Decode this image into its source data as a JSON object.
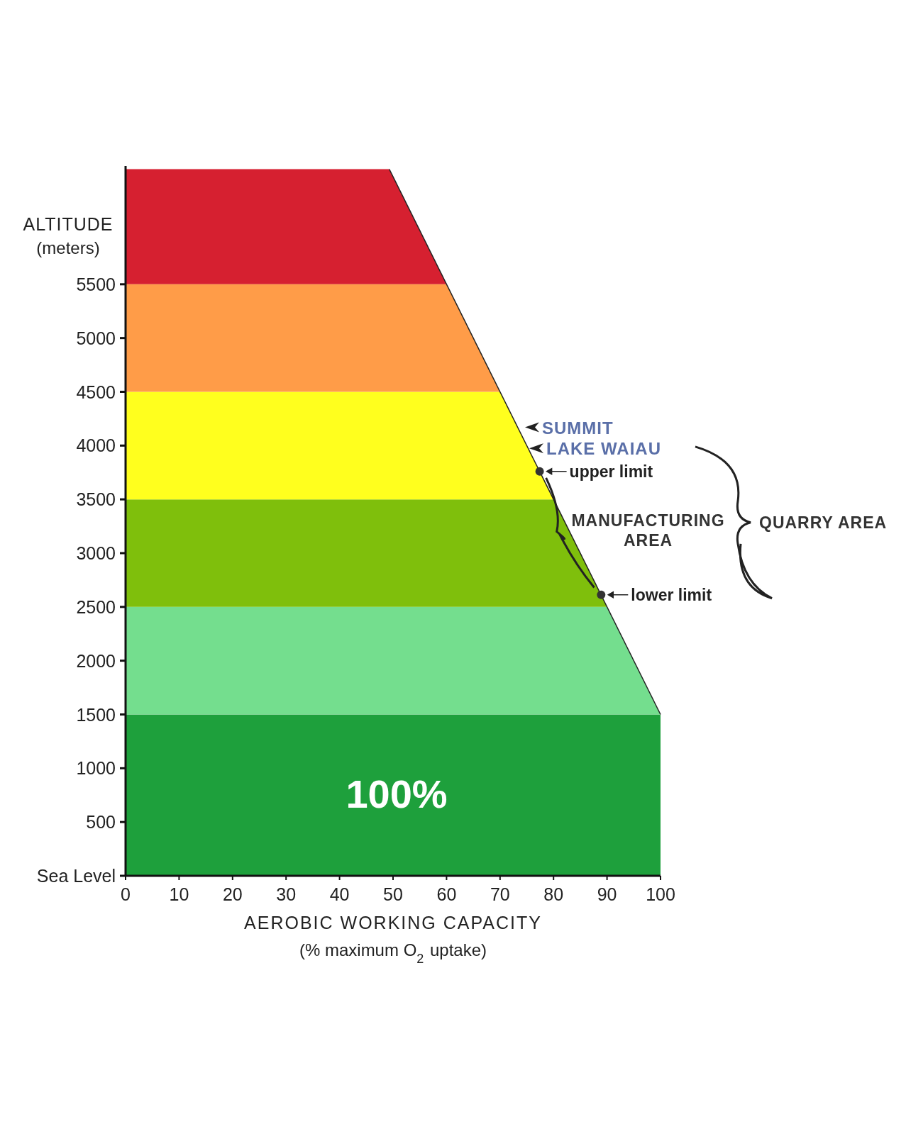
{
  "chart_data": {
    "type": "area",
    "orientation": "horizontal",
    "xlabel": "AEROBIC  WORKING  CAPACITY\n(% maximum O$_{2}$ uptake)",
    "ylabel": "ALTITUDE\n(meters)",
    "xlim": [
      0,
      100
    ],
    "xticks": [
      0,
      10,
      20,
      30,
      40,
      50,
      60,
      70,
      80,
      90,
      100
    ],
    "ylim": [
      0,
      6600
    ],
    "yticks": [
      {
        "value": 0,
        "label": "Sea Level"
      },
      500,
      1000,
      1500,
      2000,
      2500,
      3000,
      3500,
      4000,
      4500,
      5000,
      5500
    ],
    "series": [
      {
        "color": "#1ea03c",
        "x": [
          0,
          1500
        ],
        "values": [
          100,
          100
        ]
      },
      {
        "color": "#74de8e",
        "x": [
          1500,
          2500
        ],
        "values": [
          100,
          90
        ]
      },
      {
        "color": "#7fbf0c",
        "x": [
          2500,
          3500
        ],
        "values": [
          90,
          80
        ]
      },
      {
        "color": "#ffff1e",
        "x": [
          3500,
          4500
        ],
        "values": [
          80,
          70
        ]
      },
      {
        "color": "#ff9c48",
        "x": [
          4500,
          5500
        ],
        "values": [
          70,
          60
        ]
      },
      {
        "color": "#d62030",
        "x": [
          5500,
          6570
        ],
        "values": [
          60,
          49.3
        ]
      },
      {
        "type": "line",
        "color": "#222222",
        "x": [
          1500,
          6570
        ],
        "values": [
          100,
          49.3
        ]
      },
      {
        "type": "scatter",
        "color": "#333333",
        "marker": "circle",
        "x": [
          3760,
          2613
        ],
        "values": [
          77.4,
          88.9
        ]
      }
    ],
    "annotations": [
      "SUMMIT",
      {
        "text": "LAKE WAIAU",
        "x": 75.2,
        "y": 3975
      },
      {
        "text": "upper limit",
        "x": 77.4,
        "y": 3760
      },
      {
        "text": "lower limit",
        "x": 88.9,
        "y": 2613
      },
      "100%",
      "MANUFACTURING\nAREA",
      "QUARRY AREA"
    ]
  }
}
